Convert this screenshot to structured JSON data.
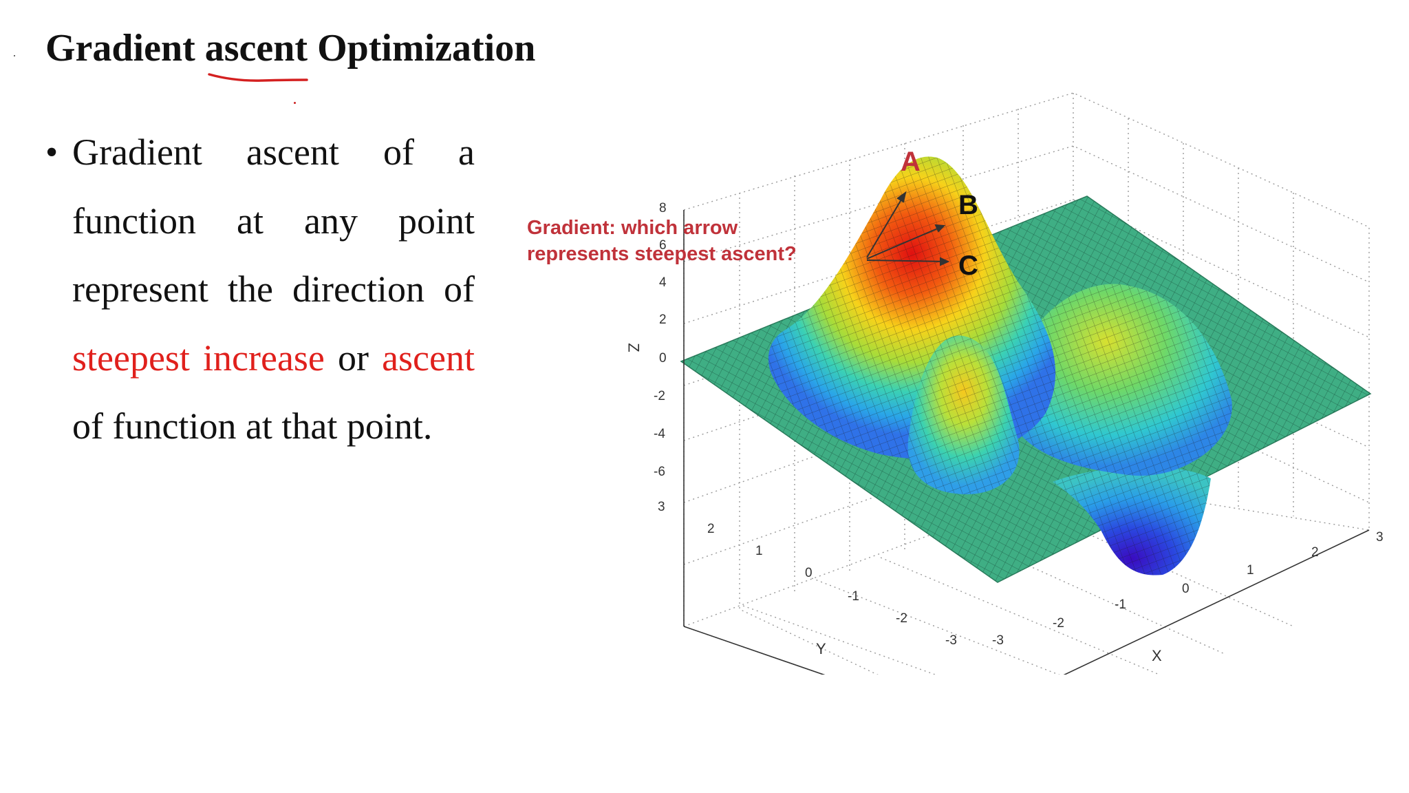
{
  "slide": {
    "title": "Gradient ascent Optimization",
    "bullet": {
      "seg1": "Gradient ascent of a function at any point represent the direction of ",
      "seg2": "steepest increase",
      "seg3": " or ",
      "seg4": "ascent",
      "seg5": " of function at that point."
    }
  },
  "figure": {
    "caption_line1": "Gradient: which arrow",
    "caption_line2": "represents steepest ascent?",
    "arrow_labels": [
      "A",
      "B",
      "C"
    ],
    "colors": {
      "highlight": "#e0201c",
      "caption": "#c0323a",
      "surface_flat": "#3fae84"
    },
    "z_axis": {
      "label": "Z",
      "ticks": [
        "8",
        "6",
        "4",
        "2",
        "0",
        "-2",
        "-4",
        "-6"
      ]
    },
    "y_axis": {
      "label": "Y",
      "ticks": [
        "3",
        "2",
        "1",
        "0",
        "-1",
        "-2",
        "-3"
      ]
    },
    "x_axis": {
      "label": "X",
      "ticks": [
        "-3",
        "-2",
        "-1",
        "0",
        "1",
        "2",
        "3"
      ]
    }
  }
}
